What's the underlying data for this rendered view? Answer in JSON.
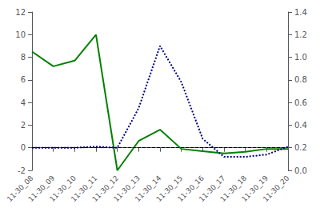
{
  "chart_data": {
    "type": "line",
    "categories": [
      "11-30_08",
      "11-30_09",
      "11-30_10",
      "11-30_11",
      "11-30_12",
      "11-30_13",
      "11-30_14",
      "11-30_15",
      "11-30_16",
      "11-30_17",
      "11-30_18",
      "11-30_19",
      "11-30_20"
    ],
    "series": [
      {
        "color": "#008000",
        "line_style": "solid",
        "values": [
          8.5,
          7.2,
          7.7,
          10.0,
          -2.0,
          0.6,
          1.6,
          -0.1,
          -0.3,
          -0.5,
          -0.35,
          -0.1,
          -0.1
        ]
      },
      {
        "color": "#000080",
        "line_style": "dotted",
        "axis": "y2",
        "values": [
          0.2,
          0.2,
          0.2,
          0.21,
          0.2,
          0.55,
          1.1,
          0.78,
          0.28,
          0.12,
          0.12,
          0.14,
          0.21
        ]
      }
    ],
    "hline": {
      "y": 0,
      "color": "#000000",
      "line_style": "dashed"
    },
    "ylim": [
      -2,
      12
    ],
    "yticks": [
      -2,
      0,
      2,
      4,
      6,
      8,
      10,
      12
    ],
    "y2lim": [
      0.0,
      1.4
    ],
    "y2ticks": [
      {
        "value": 0,
        "label": "0.0"
      },
      0.2,
      0.4,
      0.6,
      0.8,
      {
        "value": 1,
        "label": "1.0"
      },
      1.2,
      1.4
    ],
    "grid": false
  }
}
